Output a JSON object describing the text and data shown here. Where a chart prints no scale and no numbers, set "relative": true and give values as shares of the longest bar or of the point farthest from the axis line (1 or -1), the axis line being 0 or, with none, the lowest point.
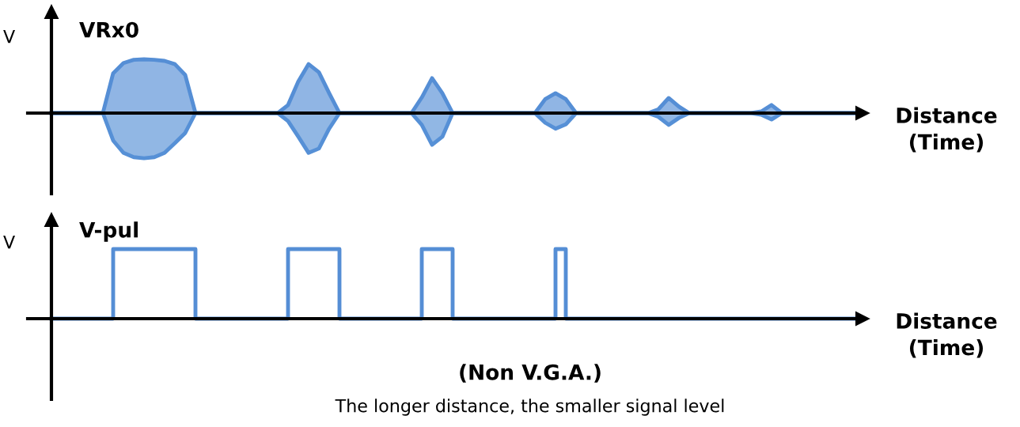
{
  "chart_data": [
    {
      "type": "area",
      "title": "VRx0",
      "ylabel": "V",
      "xlabel": "Distance\n(Time)",
      "relative": true,
      "categories": [
        null,
        null,
        null,
        null,
        null,
        null,
        null,
        null,
        null,
        null,
        null,
        null,
        null,
        null,
        null,
        null,
        null,
        null,
        null,
        null,
        null,
        null,
        null,
        null,
        null,
        null,
        null,
        null,
        null,
        null,
        null,
        null,
        null,
        null,
        null,
        null,
        null,
        null,
        null,
        null,
        null,
        null,
        null,
        null,
        null,
        null,
        null,
        null,
        null,
        null,
        null,
        null,
        null,
        null,
        null,
        null,
        null,
        null,
        null,
        null,
        null,
        null,
        null,
        null,
        null,
        null,
        null,
        null,
        null,
        null,
        null,
        null,
        null,
        null,
        null,
        null,
        null,
        null,
        null
      ],
      "series": [
        {
          "color": "#558ed5",
          "values": [
            0,
            0,
            0,
            0,
            0,
            0,
            0.74,
            0.93,
            0.99,
            1,
            0.99,
            0.97,
            0.91,
            0.71,
            0,
            0,
            0,
            0,
            0,
            0,
            0,
            0,
            0,
            0.15,
            0.59,
            0.91,
            0.76,
            0.37,
            0,
            0,
            0,
            0,
            0,
            0,
            0,
            0,
            0.29,
            0.65,
            0.37,
            0,
            0,
            0,
            0,
            0,
            0,
            0,
            0,
            0,
            0.26,
            0.37,
            0.26,
            0,
            0,
            0,
            0,
            0,
            0,
            0,
            0,
            0.07,
            0.28,
            0.12,
            0,
            0,
            0,
            0,
            0,
            0,
            0,
            0.03,
            0.15,
            0,
            0,
            0,
            0,
            0,
            0,
            0,
            0
          ]
        },
        {
          "color": "#5690d6",
          "values": [
            0,
            0,
            0,
            0,
            0,
            0,
            -0.51,
            -0.74,
            -0.82,
            -0.84,
            -0.82,
            -0.74,
            -0.56,
            -0.37,
            0,
            0,
            0,
            0,
            0,
            0,
            0,
            0,
            0,
            -0.15,
            -0.44,
            -0.74,
            -0.66,
            -0.29,
            0,
            0,
            0,
            0,
            0,
            0,
            0,
            0,
            -0.22,
            -0.59,
            -0.44,
            0,
            0,
            0,
            0,
            0,
            0,
            0,
            0,
            0,
            -0.18,
            -0.29,
            -0.21,
            0,
            0,
            0,
            0,
            0,
            0,
            0,
            0,
            -0.07,
            -0.22,
            -0.09,
            0,
            0,
            0,
            0,
            0,
            0,
            0,
            -0.03,
            -0.12,
            0,
            0,
            0,
            0,
            0,
            0,
            0,
            0
          ]
        }
      ]
    },
    {
      "type": "step",
      "title": "V-pul",
      "ylabel": "V",
      "xlabel": "Distance\n(Time)",
      "relative": true,
      "categories": [
        null,
        null,
        null,
        null,
        null,
        null,
        null,
        null,
        null,
        null,
        null,
        null,
        null,
        null,
        null,
        null,
        null,
        null,
        null,
        null,
        null,
        null,
        null,
        null,
        null,
        null,
        null,
        null,
        null,
        null,
        null,
        null,
        null,
        null,
        null,
        null,
        null,
        null,
        null,
        null,
        null,
        null,
        null,
        null,
        null,
        null,
        null,
        null,
        null,
        null,
        null,
        null,
        null,
        null,
        null,
        null,
        null,
        null,
        null,
        null,
        null,
        null,
        null,
        null,
        null,
        null,
        null,
        null,
        null,
        null,
        null,
        null,
        null,
        null,
        null,
        null,
        null,
        null,
        null
      ],
      "series": [
        {
          "color": "#558ed5",
          "values": [
            0,
            0,
            0,
            0,
            0,
            0,
            1,
            1,
            1,
            1,
            1,
            1,
            1,
            1,
            0,
            0,
            0,
            0,
            0,
            0,
            0,
            0,
            0,
            1,
            1,
            1,
            1,
            1,
            0,
            0,
            0,
            0,
            0,
            0,
            0,
            0,
            1,
            1,
            1,
            0,
            0,
            0,
            0,
            0,
            0,
            0,
            0,
            0,
            0,
            1,
            0,
            0,
            0,
            0,
            0,
            0,
            0,
            0,
            0,
            0,
            0,
            0,
            0,
            0,
            0,
            0,
            0,
            0,
            0,
            0,
            0,
            0,
            0,
            0,
            0,
            0,
            0,
            0,
            0
          ]
        }
      ],
      "annotations": [
        "(Non V.G.A.)",
        "The longer distance, the smaller signal level"
      ]
    }
  ]
}
